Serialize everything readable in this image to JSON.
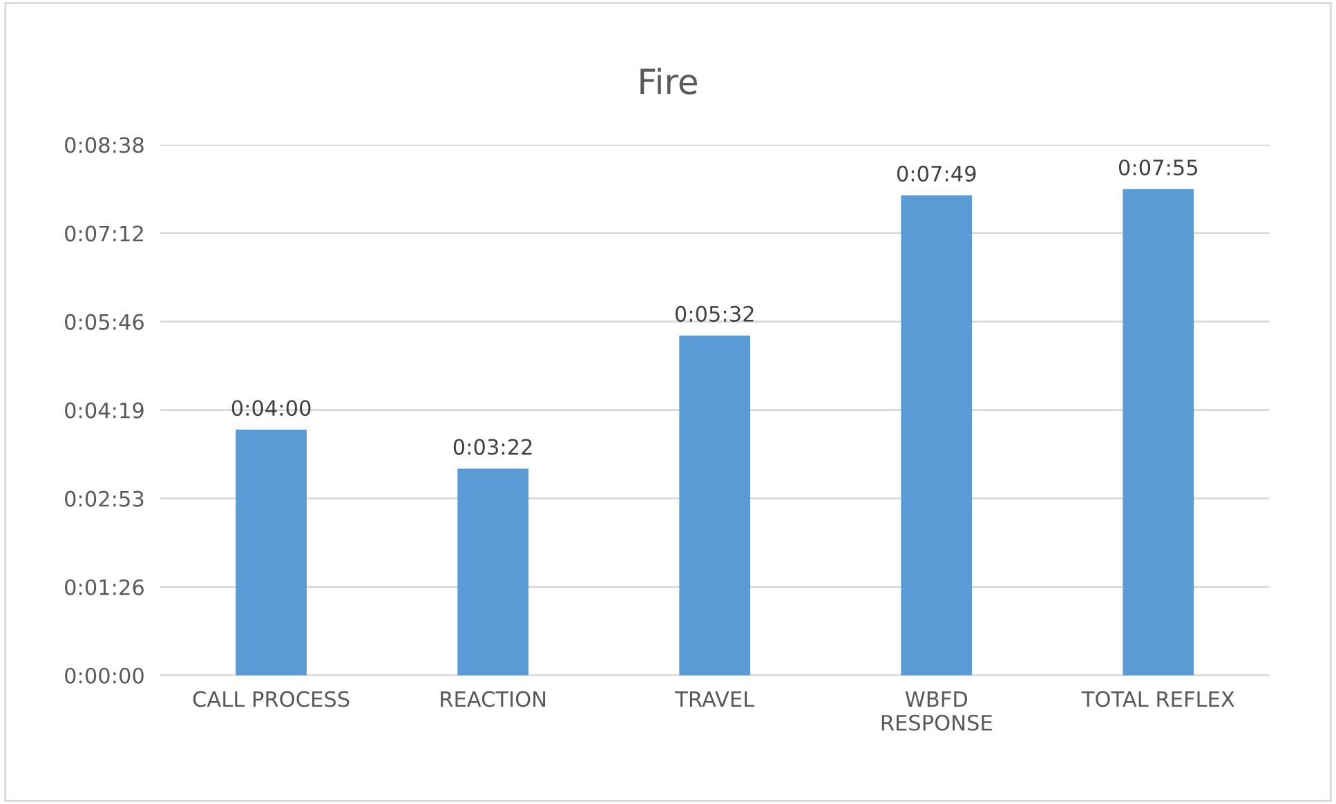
{
  "chart_data": {
    "type": "bar",
    "title": "Fire",
    "categories": [
      "CALL PROCESS",
      "REACTION",
      "TRAVEL",
      "WBFD\nRESPONSE",
      "TOTAL REFLEX"
    ],
    "values": [
      240,
      202,
      332,
      469,
      475
    ],
    "value_labels": [
      "0:04:00",
      "0:03:22",
      "0:05:32",
      "0:07:49",
      "0:07:55"
    ],
    "color": "#5b9bd5",
    "ylim": [
      0,
      518.4
    ],
    "yticks": [
      {
        "value": 0,
        "label": "0:00:00"
      },
      {
        "value": 86.4,
        "label": "0:01:26"
      },
      {
        "value": 172.8,
        "label": "0:02:53"
      },
      {
        "value": 259.2,
        "label": "0:04:19"
      },
      {
        "value": 345.6,
        "label": "0:05:46"
      },
      {
        "value": 432,
        "label": "0:07:12"
      },
      {
        "value": 518.4,
        "label": "0:08:38"
      }
    ],
    "grid": "y",
    "legend": false
  }
}
